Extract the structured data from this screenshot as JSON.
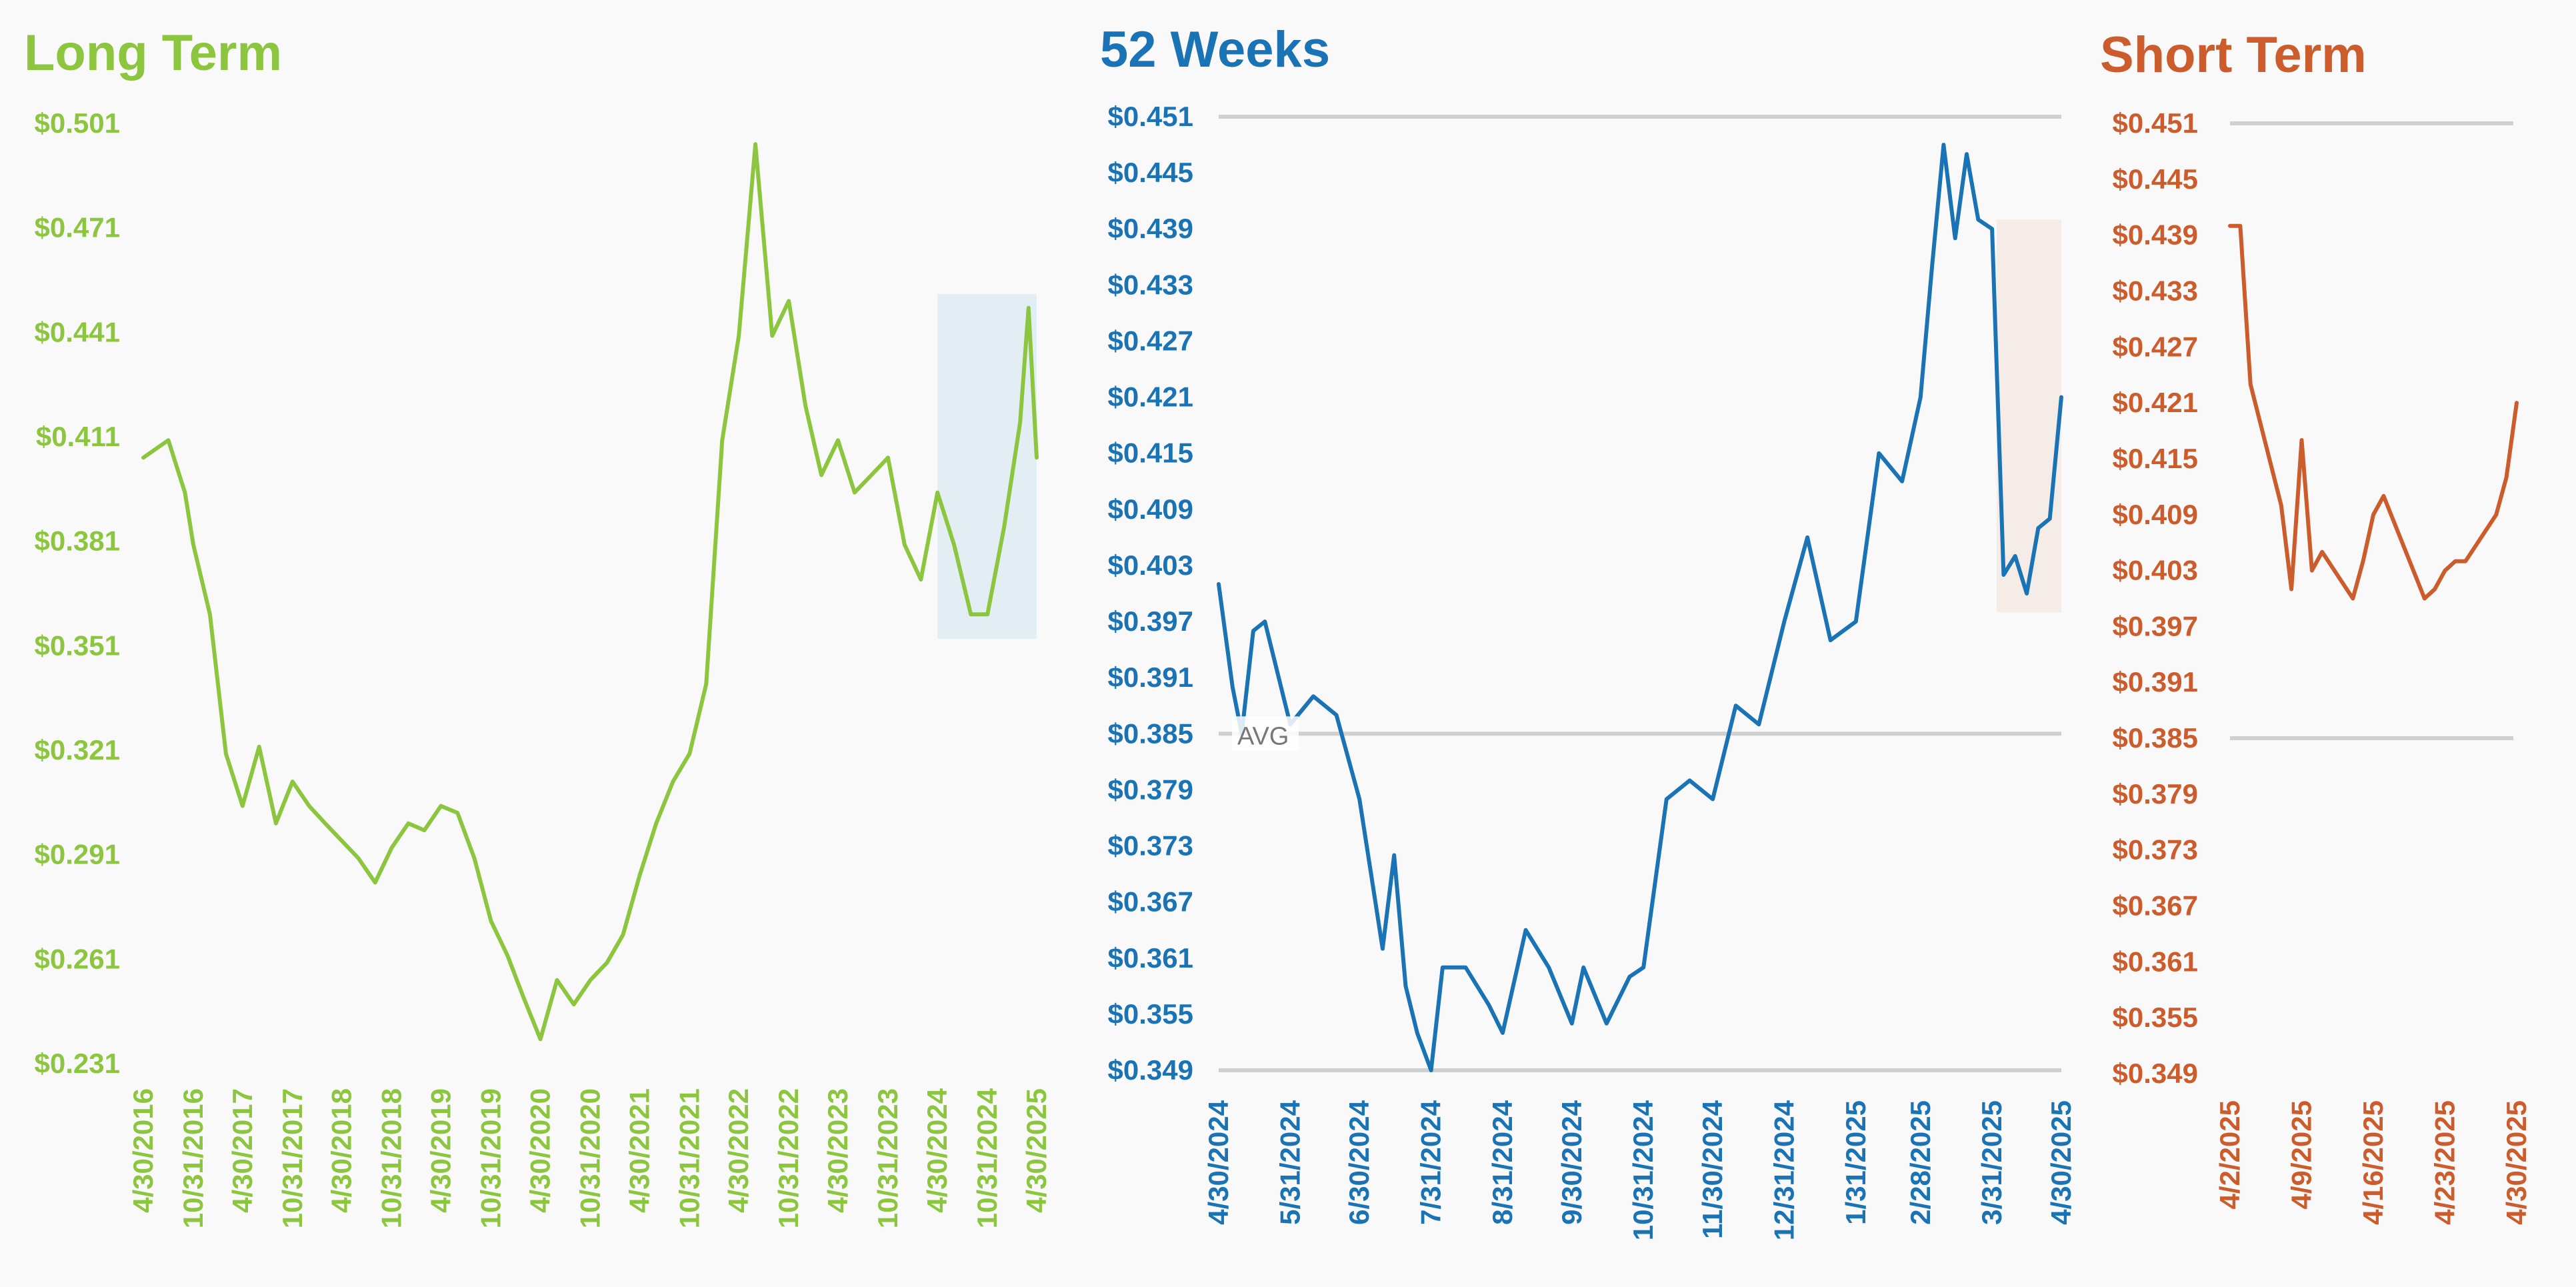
{
  "chart_data": [
    {
      "type": "line",
      "title": "Long Term",
      "color": "#8cc63f",
      "y_ticks": [
        "$0.501",
        "$0.471",
        "$0.441",
        "$0.411",
        "$0.381",
        "$0.351",
        "$0.321",
        "$0.291",
        "$0.261",
        "$0.231"
      ],
      "ylim": [
        0.231,
        0.501
      ],
      "x_ticks": [
        "4/30/2016",
        "10/31/2016",
        "4/30/2017",
        "10/31/2017",
        "4/30/2018",
        "10/31/2018",
        "4/30/2019",
        "10/31/2019",
        "4/30/2020",
        "10/31/2020",
        "4/30/2021",
        "10/31/2021",
        "4/30/2022",
        "10/31/2022",
        "4/30/2023",
        "10/31/2023",
        "4/30/2024",
        "10/31/2024",
        "4/30/2025"
      ],
      "highlight": {
        "x_from": "4/30/2024",
        "x_to": "4/30/2025",
        "y_from": 0.353,
        "y_to": 0.452,
        "color": "#e3eef4"
      },
      "series": [
        {
          "x": [
            "4/30/2016",
            "7/31/2016",
            "9/30/2016",
            "10/31/2016",
            "12/31/2016",
            "2/28/2017",
            "4/30/2017",
            "6/30/2017",
            "8/31/2017",
            "10/31/2017",
            "12/31/2017",
            "2/28/2018",
            "4/30/2018",
            "6/30/2018",
            "8/31/2018",
            "10/31/2018",
            "12/31/2018",
            "2/28/2019",
            "4/30/2019",
            "6/30/2019",
            "8/31/2019",
            "10/31/2019",
            "12/31/2019",
            "2/28/2020",
            "4/30/2020",
            "6/30/2020",
            "8/31/2020",
            "10/31/2020",
            "12/31/2020",
            "2/28/2021",
            "4/30/2021",
            "6/30/2021",
            "8/31/2021",
            "10/31/2021",
            "12/31/2021",
            "2/28/2022",
            "4/30/2022",
            "6/30/2022",
            "8/31/2022",
            "10/31/2022",
            "12/31/2022",
            "2/28/2023",
            "4/30/2023",
            "6/30/2023",
            "8/31/2023",
            "10/31/2023",
            "12/31/2023",
            "2/29/2024",
            "4/30/2024",
            "6/30/2024",
            "8/31/2024",
            "10/31/2024",
            "12/31/2024",
            "2/28/2025",
            "3/31/2025",
            "4/30/2025"
          ],
          "values": [
            0.405,
            0.41,
            0.395,
            0.38,
            0.36,
            0.32,
            0.305,
            0.322,
            0.3,
            0.312,
            0.305,
            0.3,
            0.295,
            0.29,
            0.283,
            0.293,
            0.3,
            0.298,
            0.305,
            0.303,
            0.29,
            0.272,
            0.262,
            0.25,
            0.238,
            0.255,
            0.248,
            0.255,
            0.26,
            0.268,
            0.285,
            0.3,
            0.312,
            0.32,
            0.34,
            0.41,
            0.44,
            0.495,
            0.44,
            0.45,
            0.42,
            0.4,
            0.41,
            0.395,
            0.4,
            0.405,
            0.38,
            0.37,
            0.395,
            0.38,
            0.36,
            0.36,
            0.385,
            0.415,
            0.448,
            0.405
          ]
        }
      ]
    },
    {
      "type": "line",
      "title": "52 Weeks",
      "color": "#1a73b5",
      "y_ticks": [
        "$0.451",
        "$0.445",
        "$0.439",
        "$0.433",
        "$0.427",
        "$0.421",
        "$0.415",
        "$0.409",
        "$0.403",
        "$0.397",
        "$0.391",
        "$0.385",
        "$0.379",
        "$0.373",
        "$0.367",
        "$0.361",
        "$0.355",
        "$0.349"
      ],
      "ylim": [
        0.349,
        0.451
      ],
      "x_ticks": [
        "4/30/2024",
        "5/31/2024",
        "6/30/2024",
        "7/31/2024",
        "8/31/2024",
        "9/30/2024",
        "10/31/2024",
        "11/30/2024",
        "12/31/2024",
        "1/31/2025",
        "2/28/2025",
        "3/31/2025",
        "4/30/2025"
      ],
      "reference_lines": {
        "max": 0.451,
        "avg": 0.385,
        "min": 0.349
      },
      "avg_label": "AVG",
      "highlight": {
        "x_from": "4/2/2025",
        "x_to": "4/30/2025",
        "y_from": 0.398,
        "y_to": 0.44,
        "color": "#f5ece8"
      },
      "series": [
        {
          "x": [
            "4/30/2024",
            "5/6/2024",
            "5/10/2024",
            "5/15/2024",
            "5/20/2024",
            "5/31/2024",
            "6/10/2024",
            "6/20/2024",
            "6/30/2024",
            "7/5/2024",
            "7/10/2024",
            "7/15/2024",
            "7/20/2024",
            "7/25/2024",
            "7/31/2024",
            "8/5/2024",
            "8/15/2024",
            "8/25/2024",
            "8/31/2024",
            "9/10/2024",
            "9/20/2024",
            "9/30/2024",
            "10/5/2024",
            "10/15/2024",
            "10/25/2024",
            "10/31/2024",
            "11/10/2024",
            "11/20/2024",
            "11/30/2024",
            "12/10/2024",
            "12/20/2024",
            "12/31/2024",
            "1/10/2025",
            "1/20/2025",
            "1/31/2025",
            "2/10/2025",
            "2/20/2025",
            "2/28/2025",
            "3/5/2025",
            "3/10/2025",
            "3/15/2025",
            "3/20/2025",
            "3/25/2025",
            "3/31/2025",
            "4/5/2025",
            "4/10/2025",
            "4/15/2025",
            "4/20/2025",
            "4/25/2025",
            "4/30/2025"
          ],
          "values": [
            0.401,
            0.39,
            0.385,
            0.396,
            0.397,
            0.386,
            0.389,
            0.387,
            0.378,
            0.37,
            0.362,
            0.372,
            0.358,
            0.353,
            0.349,
            0.36,
            0.36,
            0.356,
            0.353,
            0.364,
            0.36,
            0.354,
            0.36,
            0.354,
            0.359,
            0.36,
            0.378,
            0.38,
            0.378,
            0.388,
            0.386,
            0.397,
            0.406,
            0.395,
            0.397,
            0.415,
            0.412,
            0.421,
            0.435,
            0.448,
            0.438,
            0.447,
            0.44,
            0.439,
            0.402,
            0.404,
            0.4,
            0.407,
            0.408,
            0.421
          ]
        }
      ]
    },
    {
      "type": "line",
      "title": "Short Term",
      "color": "#cc5c2c",
      "y_ticks": [
        "$0.451",
        "$0.445",
        "$0.439",
        "$0.433",
        "$0.427",
        "$0.421",
        "$0.415",
        "$0.409",
        "$0.403",
        "$0.397",
        "$0.391",
        "$0.385",
        "$0.379",
        "$0.373",
        "$0.367",
        "$0.361",
        "$0.355",
        "$0.349"
      ],
      "ylim": [
        0.349,
        0.451
      ],
      "x_ticks": [
        "4/2/2025",
        "4/9/2025",
        "4/16/2025",
        "4/23/2025",
        "4/30/2025"
      ],
      "reference_lines": {
        "max": 0.451,
        "min": 0.385
      },
      "series": [
        {
          "x": [
            "4/2/2025",
            "4/3/2025",
            "4/4/2025",
            "4/7/2025",
            "4/8/2025",
            "4/9/2025",
            "4/10/2025",
            "4/11/2025",
            "4/14/2025",
            "4/15/2025",
            "4/16/2025",
            "4/17/2025",
            "4/21/2025",
            "4/22/2025",
            "4/23/2025",
            "4/24/2025",
            "4/25/2025",
            "4/28/2025",
            "4/29/2025",
            "4/30/2025"
          ],
          "values": [
            0.44,
            0.44,
            0.423,
            0.41,
            0.401,
            0.417,
            0.403,
            0.405,
            0.4,
            0.404,
            0.409,
            0.411,
            0.4,
            0.401,
            0.403,
            0.404,
            0.404,
            0.409,
            0.413,
            0.421
          ]
        }
      ]
    }
  ]
}
